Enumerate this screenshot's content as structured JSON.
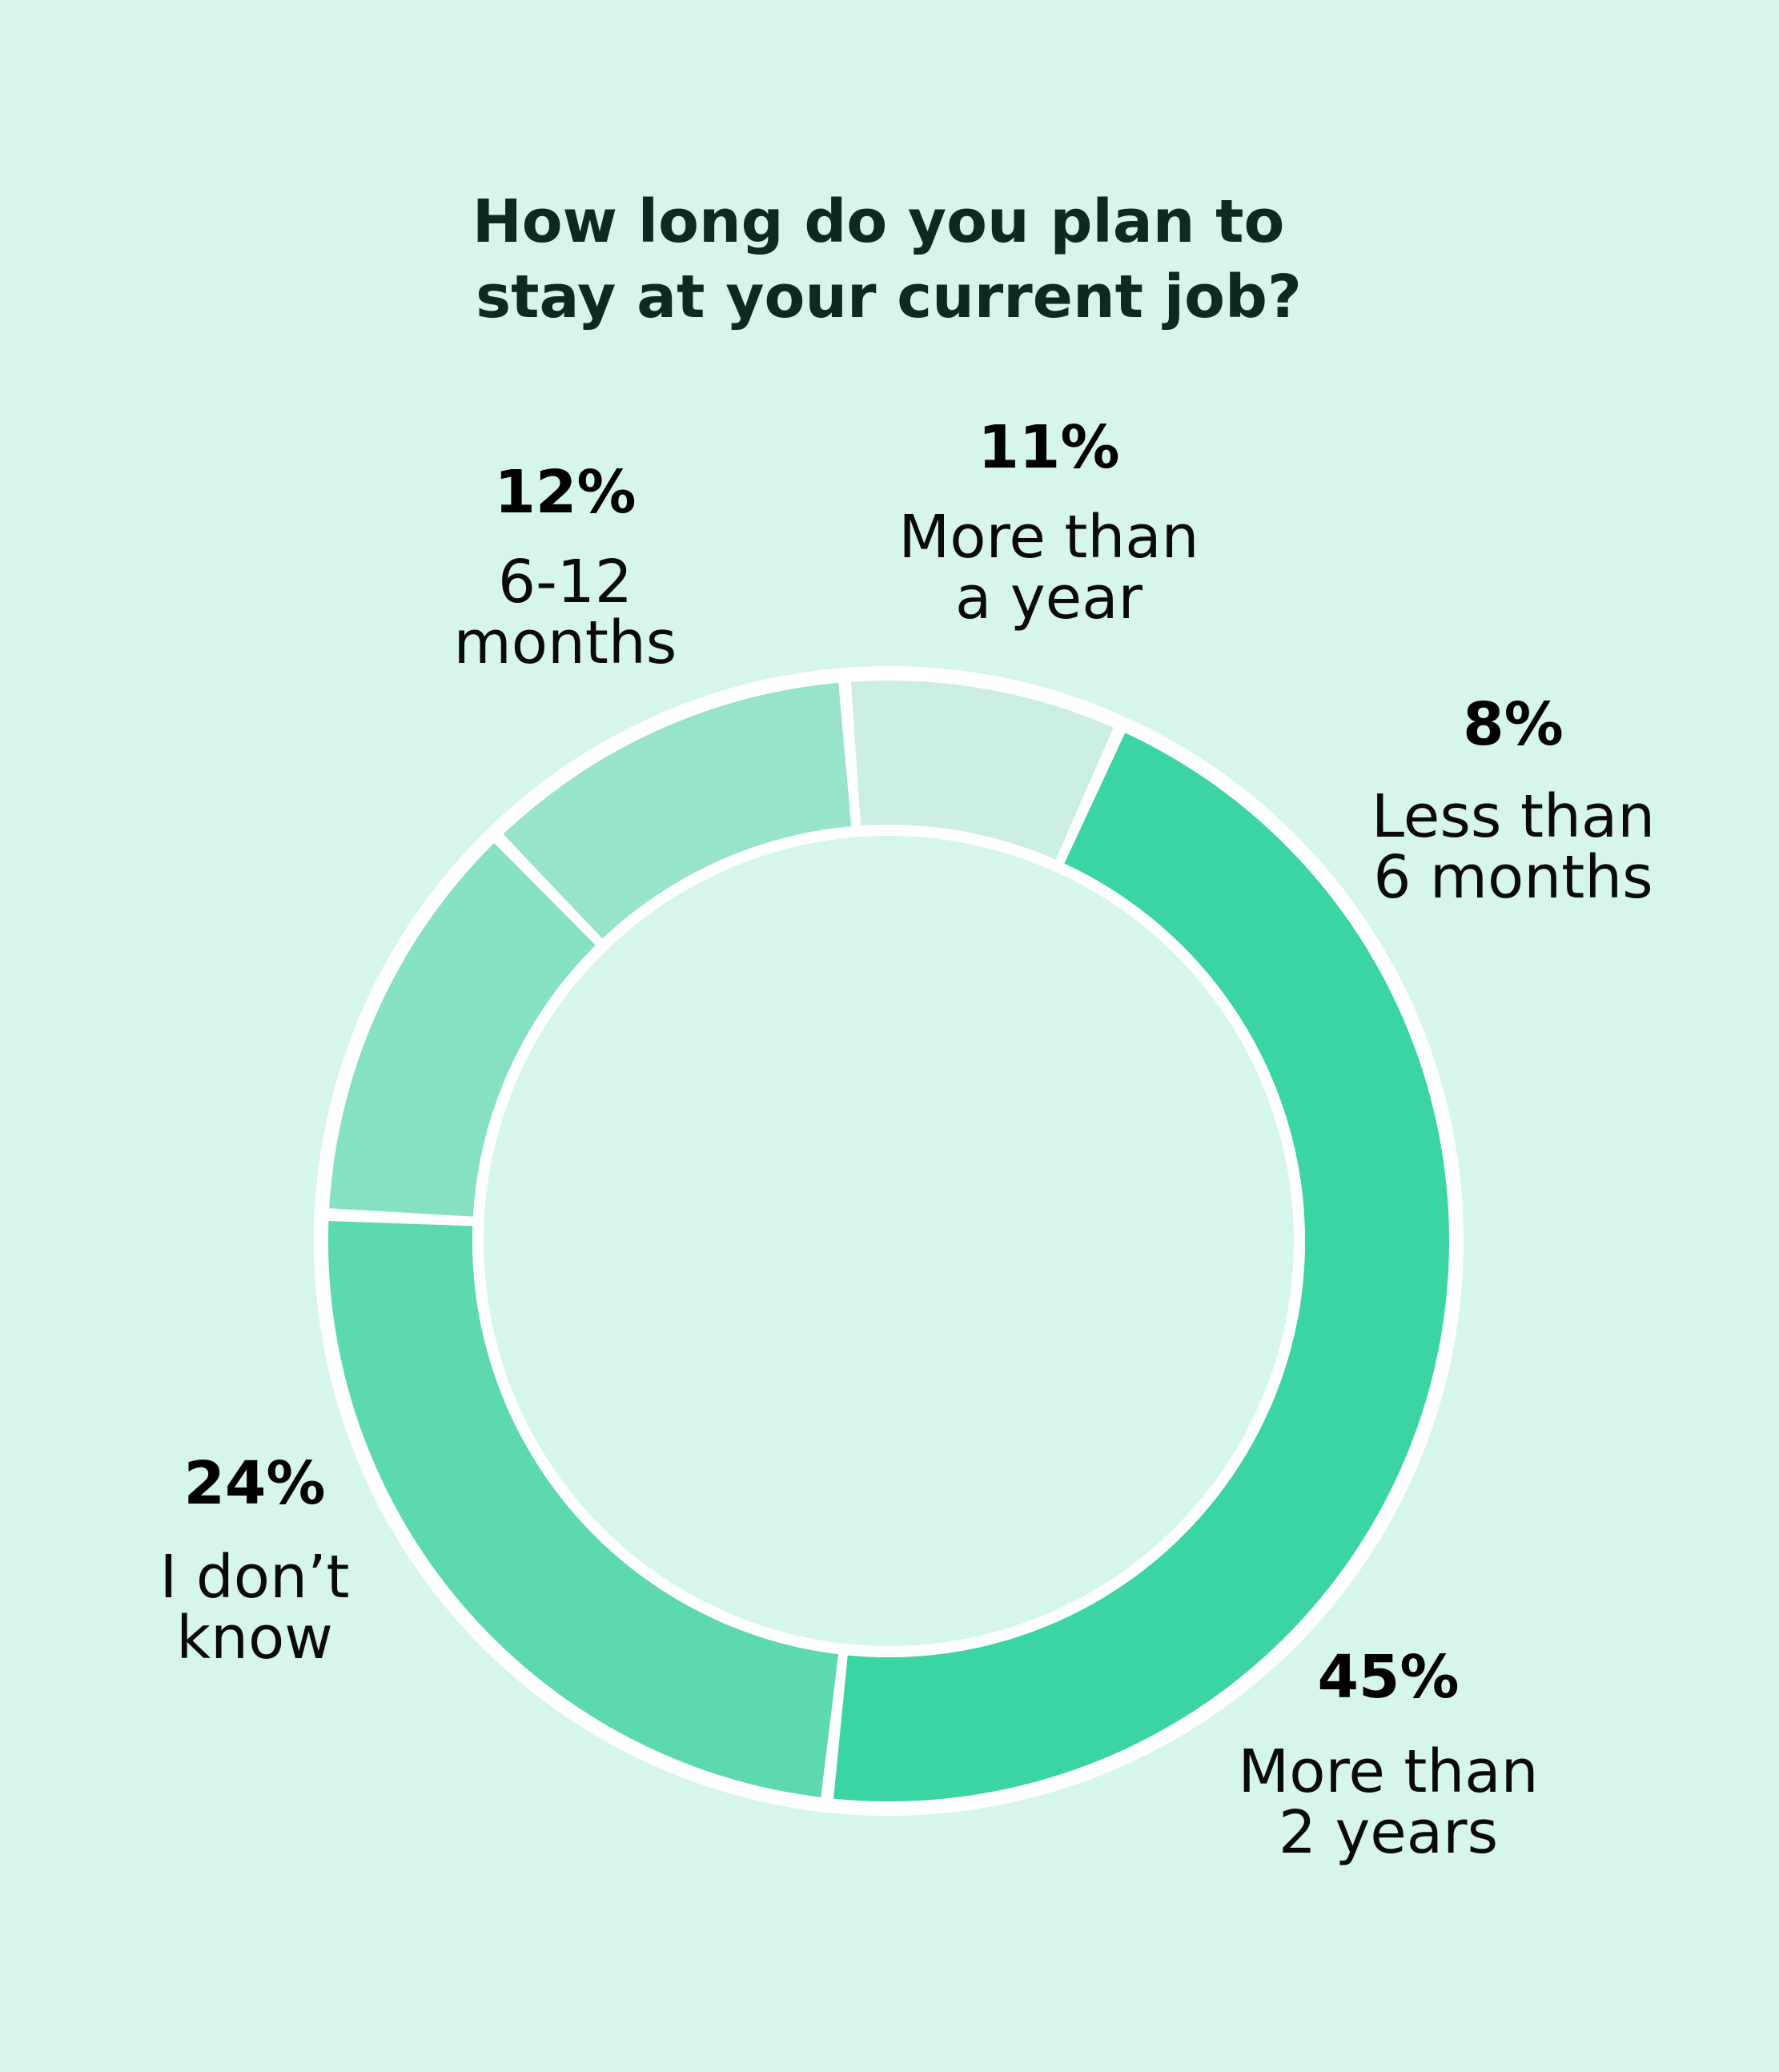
{
  "colors": {
    "background": "#d7f6eb",
    "ring_outline": "#ffffff",
    "title": "#0c2a22",
    "label_percent": "#000000",
    "label_category": "#0a0a0a"
  },
  "chart_data": {
    "type": "pie",
    "variant": "donut",
    "title": "How long do you plan to stay at your current job?",
    "title_lines": [
      "How long do you plan to",
      "stay at your current job?"
    ],
    "legend": "none",
    "slices": [
      {
        "label": "Less than 6 months",
        "label_lines": [
          "Less than",
          "6 months"
        ],
        "value": 8,
        "value_label": "8%",
        "color": "#cceee2"
      },
      {
        "label": "More than 2 years",
        "label_lines": [
          "More than",
          "2 years"
        ],
        "value": 45,
        "value_label": "45%",
        "color": "#3bd4a4"
      },
      {
        "label": "I don’t know",
        "label_lines": [
          "I don’t",
          "know"
        ],
        "value": 24,
        "value_label": "24%",
        "color": "#5dd9b2"
      },
      {
        "label": "6-12 months",
        "label_lines": [
          "6-12",
          "months"
        ],
        "value": 12,
        "value_label": "12%",
        "color": "#86e1c4"
      },
      {
        "label": "More than a year",
        "label_lines": [
          "More than",
          "a year"
        ],
        "value": 11,
        "value_label": "11%",
        "color": "#98e3cb"
      }
    ]
  }
}
